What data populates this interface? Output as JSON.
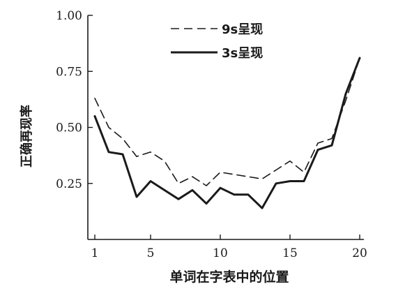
{
  "chart_data": {
    "type": "line",
    "title": "",
    "xlabel": "单词在字表中的位置",
    "ylabel": "正确再现率",
    "xlim": [
      0.5,
      20.3
    ],
    "ylim": [
      0.0,
      1.0
    ],
    "x_ticks": [
      1,
      5,
      10,
      15,
      20
    ],
    "x_tick_labels": [
      "1",
      "5",
      "10",
      "15",
      "20"
    ],
    "y_ticks": [
      0.25,
      0.5,
      0.75,
      1.0
    ],
    "y_tick_labels": [
      "0.25",
      "0.50",
      "0.75",
      "1.00"
    ],
    "grid": false,
    "legend_position": "top-center",
    "x": [
      1,
      2,
      3,
      4,
      5,
      6,
      7,
      8,
      9,
      10,
      11,
      12,
      13,
      14,
      15,
      16,
      17,
      18,
      19,
      20
    ],
    "series": [
      {
        "name": "9s呈现",
        "style": "dashed",
        "color": "#1a1a1a",
        "values": [
          0.63,
          0.5,
          0.45,
          0.37,
          0.39,
          0.35,
          0.25,
          0.28,
          0.24,
          0.3,
          0.29,
          0.28,
          0.27,
          0.31,
          0.35,
          0.3,
          0.43,
          0.45,
          0.62,
          0.81
        ]
      },
      {
        "name": "3s呈现",
        "style": "solid",
        "color": "#1a1a1a",
        "values": [
          0.55,
          0.39,
          0.38,
          0.19,
          0.26,
          0.22,
          0.18,
          0.22,
          0.16,
          0.23,
          0.2,
          0.2,
          0.14,
          0.25,
          0.26,
          0.26,
          0.4,
          0.42,
          0.65,
          0.81
        ]
      }
    ]
  }
}
